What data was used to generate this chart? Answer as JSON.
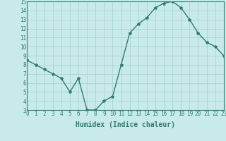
{
  "x": [
    0,
    1,
    2,
    3,
    4,
    5,
    6,
    7,
    8,
    9,
    10,
    11,
    12,
    13,
    14,
    15,
    16,
    17,
    18,
    19,
    20,
    21,
    22,
    23
  ],
  "y": [
    8.5,
    8.0,
    7.5,
    7.0,
    6.5,
    5.0,
    6.5,
    3.0,
    3.0,
    4.0,
    4.5,
    8.0,
    11.5,
    12.5,
    13.2,
    14.3,
    14.8,
    15.0,
    14.3,
    13.0,
    11.5,
    10.5,
    10.0,
    9.0
  ],
  "line_color": "#2e7d6e",
  "marker": "*",
  "marker_size": 3,
  "bg_color": "#c8eaea",
  "grid_color": "#aad4d4",
  "xlabel": "Humidex (Indice chaleur)",
  "ylim": [
    3,
    15
  ],
  "xlim": [
    0,
    23
  ],
  "yticks": [
    3,
    4,
    5,
    6,
    7,
    8,
    9,
    10,
    11,
    12,
    13,
    14,
    15
  ],
  "xticks": [
    0,
    1,
    2,
    3,
    4,
    5,
    6,
    7,
    8,
    9,
    10,
    11,
    12,
    13,
    14,
    15,
    16,
    17,
    18,
    19,
    20,
    21,
    22,
    23
  ],
  "tick_label_fontsize": 5.5,
  "xlabel_fontsize": 7,
  "line_width": 1.0
}
